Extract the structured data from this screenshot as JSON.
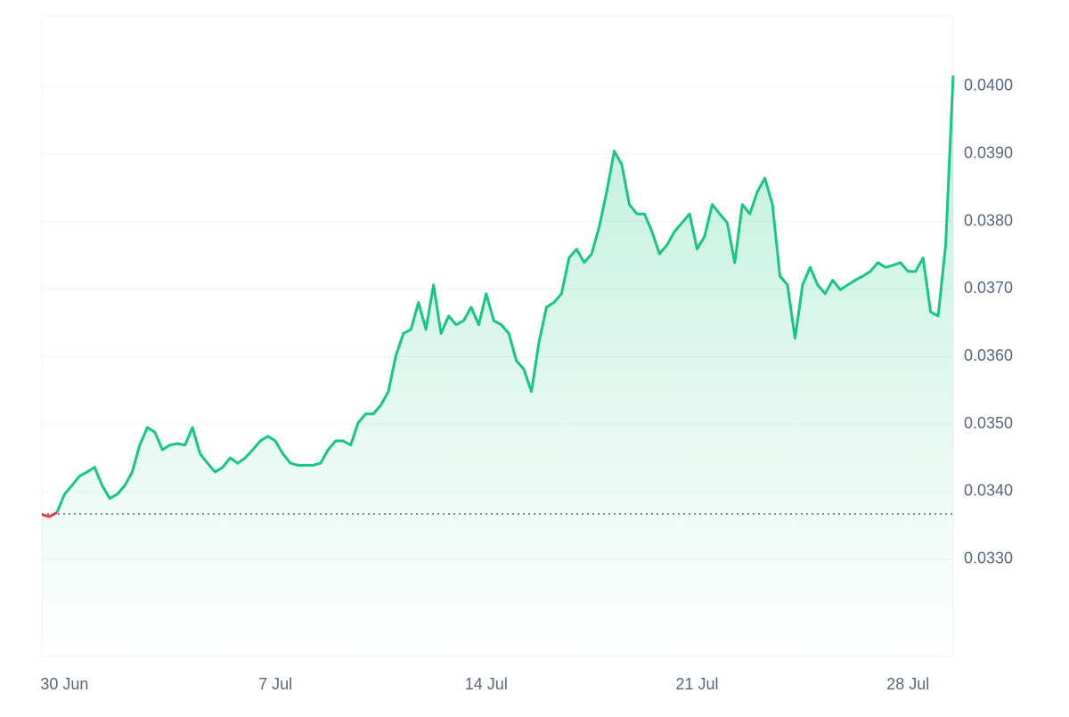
{
  "chart_data": {
    "type": "line",
    "categories": [
      null,
      null,
      null,
      "30 Jun",
      null,
      null,
      null,
      null,
      null,
      null,
      null,
      null,
      null,
      null,
      null,
      null,
      null,
      null,
      null,
      null,
      null,
      null,
      null,
      null,
      null,
      null,
      null,
      null,
      null,
      null,
      null,
      "7 Jul",
      null,
      null,
      null,
      null,
      null,
      null,
      null,
      null,
      null,
      null,
      null,
      null,
      null,
      null,
      null,
      null,
      null,
      null,
      null,
      null,
      null,
      null,
      null,
      null,
      null,
      null,
      null,
      "14 Jul",
      null,
      null,
      null,
      null,
      null,
      null,
      null,
      null,
      null,
      null,
      null,
      null,
      null,
      null,
      null,
      null,
      null,
      null,
      null,
      null,
      null,
      null,
      null,
      null,
      null,
      null,
      null,
      "21 Jul",
      null,
      null,
      null,
      null,
      null,
      null,
      null,
      null,
      null,
      null,
      null,
      null,
      null,
      null,
      null,
      null,
      null,
      null,
      null,
      null,
      null,
      null,
      null,
      null,
      null,
      null,
      null,
      "28 Jul",
      null,
      null,
      null,
      null,
      null,
      null
    ],
    "series": [
      {
        "color": "#16c784",
        "values": [
          0.03366,
          0.03363,
          0.03369,
          0.03396,
          0.03409,
          0.03423,
          0.03429,
          0.03436,
          0.03409,
          0.0339,
          0.03396,
          0.03409,
          0.03429,
          0.03469,
          0.03495,
          0.03488,
          0.03462,
          0.03469,
          0.03471,
          0.03469,
          0.03495,
          0.03456,
          0.03442,
          0.03429,
          0.03436,
          0.0345,
          0.03442,
          0.0345,
          0.03462,
          0.03475,
          0.03482,
          0.03475,
          0.03456,
          0.03442,
          0.03439,
          0.03439,
          0.03439,
          0.03442,
          0.03462,
          0.03475,
          0.03475,
          0.03469,
          0.03502,
          0.03515,
          0.03515,
          0.03528,
          0.03548,
          0.03601,
          0.03634,
          0.0364,
          0.0368,
          0.0364,
          0.03706,
          0.03634,
          0.0366,
          0.03647,
          0.03653,
          0.03673,
          0.03647,
          0.03693,
          0.03653,
          0.03647,
          0.03634,
          0.03594,
          0.03581,
          0.03548,
          0.03621,
          0.03673,
          0.0368,
          0.03693,
          0.03746,
          0.03759,
          0.03739,
          0.03752,
          0.03792,
          0.03844,
          0.03904,
          0.03884,
          0.03825,
          0.03811,
          0.03811,
          0.03785,
          0.03752,
          0.03765,
          0.03785,
          0.03798,
          0.03811,
          0.03759,
          0.03778,
          0.03825,
          0.03811,
          0.03798,
          0.03739,
          0.03825,
          0.03811,
          0.03844,
          0.03864,
          0.03825,
          0.03719,
          0.03706,
          0.03627,
          0.03706,
          0.03732,
          0.03706,
          0.03693,
          0.03713,
          0.03699,
          0.03706,
          0.03713,
          0.03719,
          0.03726,
          0.03739,
          0.03732,
          0.03735,
          0.03739,
          0.03726,
          0.03726,
          0.03746,
          0.03666,
          0.0366,
          0.03765,
          0.04016
        ]
      }
    ],
    "baseline": 0.03367,
    "down_color": "#ea3943",
    "ylim": [
      0.03156,
      0.04104
    ],
    "yticks": [
      {
        "value": 0.033,
        "label": "0.0330"
      },
      {
        "value": 0.034,
        "label": "0.0340"
      },
      {
        "value": 0.035,
        "label": "0.0350"
      },
      {
        "value": 0.036,
        "label": "0.0360"
      },
      {
        "value": 0.037,
        "label": "0.0370"
      },
      {
        "value": 0.038,
        "label": "0.0380"
      },
      {
        "value": 0.039,
        "label": "0.0390"
      },
      {
        "value": 0.04,
        "label": "0.0400"
      }
    ],
    "grid": true
  }
}
